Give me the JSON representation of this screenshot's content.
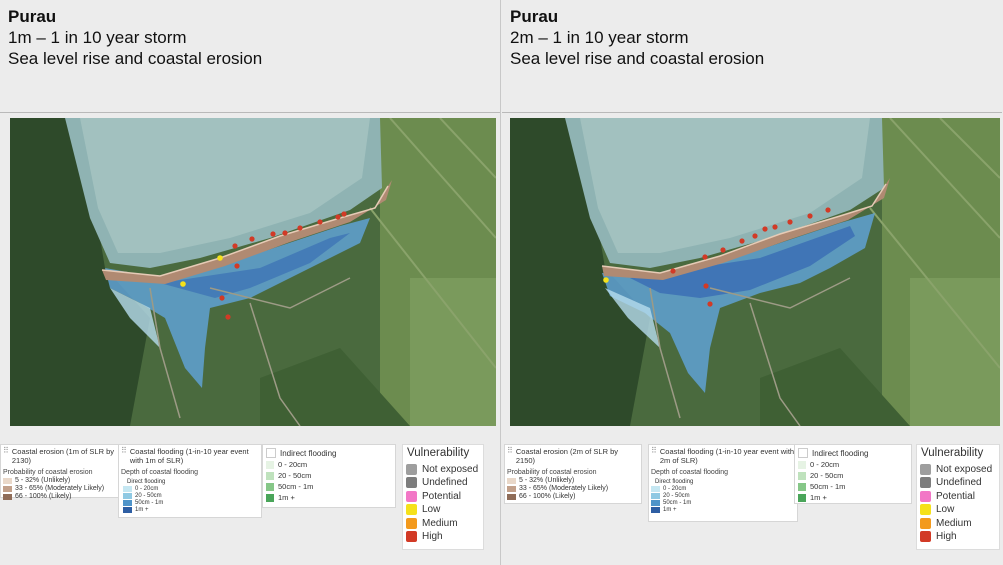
{
  "left": {
    "title": "Purau",
    "scenario": "1m – 1 in 10 year storm",
    "subtitle": "Sea level rise and coastal erosion",
    "erosion": {
      "title": "Coastal erosion (1m of SLR by 2130)",
      "subtitle": "Probability of coastal erosion",
      "items": [
        {
          "label": "5 - 32% (Unlikely)",
          "color": "#e9d8c9"
        },
        {
          "label": "33 - 65% (Moderately Likely)",
          "color": "#c2a08a"
        },
        {
          "label": "66 - 100% (Likely)",
          "color": "#8f6c58"
        }
      ]
    },
    "flooding": {
      "title": "Coastal flooding (1-in-10 year event with 1m of SLR)",
      "subtitle": "Depth of coastal flooding",
      "direct_label": "Direct flooding",
      "items": [
        {
          "label": "0 - 20cm",
          "color": "#c5e7f2"
        },
        {
          "label": "20 - 50cm",
          "color": "#8fc9e3"
        },
        {
          "label": "50cm - 1m",
          "color": "#4f94c9"
        },
        {
          "label": "1m +",
          "color": "#2e5ea3"
        }
      ]
    },
    "indirect": {
      "title": "Indirect flooding",
      "items": [
        {
          "label": "0 - 20cm",
          "color": "#e6f3e4"
        },
        {
          "label": "20 - 50cm",
          "color": "#bfe2bd"
        },
        {
          "label": "50cm - 1m",
          "color": "#86c788"
        },
        {
          "label": "1m +",
          "color": "#4aa55a"
        }
      ]
    }
  },
  "right": {
    "title": "Purau",
    "scenario": "2m – 1 in 10 year storm",
    "subtitle": "Sea level rise and coastal erosion",
    "erosion": {
      "title": "Coastal erosion (2m of SLR by 2150)",
      "subtitle": "Probability of coastal erosion",
      "items": [
        {
          "label": "5 - 32% (Unlikely)",
          "color": "#e9d8c9"
        },
        {
          "label": "33 - 65% (Moderately Likely)",
          "color": "#c2a08a"
        },
        {
          "label": "66 - 100% (Likely)",
          "color": "#8f6c58"
        }
      ]
    },
    "flooding": {
      "title": "Coastal flooding (1-in-10 year event with 2m of SLR)",
      "subtitle": "Depth of coastal flooding",
      "direct_label": "Direct flooding",
      "items": [
        {
          "label": "0 - 20cm",
          "color": "#c5e7f2"
        },
        {
          "label": "20 - 50cm",
          "color": "#8fc9e3"
        },
        {
          "label": "50cm - 1m",
          "color": "#4f94c9"
        },
        {
          "label": "1m +",
          "color": "#2e5ea3"
        }
      ]
    },
    "indirect": {
      "title": "Indirect flooding",
      "items": [
        {
          "label": "0 - 20cm",
          "color": "#e6f3e4"
        },
        {
          "label": "20 - 50cm",
          "color": "#bfe2bd"
        },
        {
          "label": "50cm - 1m",
          "color": "#86c788"
        },
        {
          "label": "1m +",
          "color": "#4aa55a"
        }
      ]
    }
  },
  "vulnerability": {
    "title": "Vulnerability",
    "items": [
      {
        "label": "Not exposed",
        "color": "#9e9e9e"
      },
      {
        "label": "Undefined",
        "color": "#7d7d7d"
      },
      {
        "label": "Potential",
        "color": "#f277c6"
      },
      {
        "label": "Low",
        "color": "#f5e11b"
      },
      {
        "label": "Medium",
        "color": "#f39a1d"
      },
      {
        "label": "High",
        "color": "#d23a26"
      }
    ]
  }
}
